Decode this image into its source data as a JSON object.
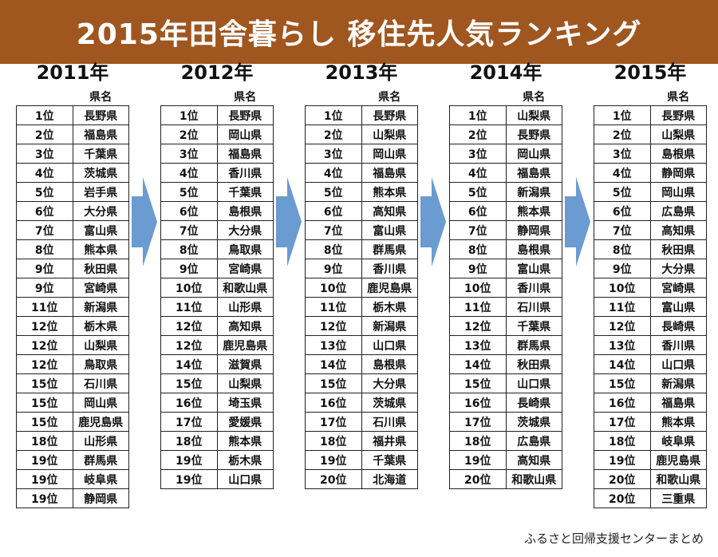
{
  "title": "2015年田舎暮らし 移住先人気ランキング",
  "header_label": "県名",
  "footer": "ふるさと回帰支援センターまとめ",
  "colors": {
    "title_bg": "#a0561f",
    "arrow": "#6a9bd1"
  },
  "years": [
    {
      "year": "2011年",
      "rows": [
        {
          "rank": "1位",
          "pref": "長野県"
        },
        {
          "rank": "2位",
          "pref": "福島県"
        },
        {
          "rank": "3位",
          "pref": "千葉県"
        },
        {
          "rank": "4位",
          "pref": "茨城県"
        },
        {
          "rank": "5位",
          "pref": "岩手県"
        },
        {
          "rank": "6位",
          "pref": "大分県"
        },
        {
          "rank": "7位",
          "pref": "富山県"
        },
        {
          "rank": "8位",
          "pref": "熊本県"
        },
        {
          "rank": "9位",
          "pref": "秋田県"
        },
        {
          "rank": "9位",
          "pref": "宮崎県"
        },
        {
          "rank": "11位",
          "pref": "新潟県"
        },
        {
          "rank": "12位",
          "pref": "栃木県"
        },
        {
          "rank": "12位",
          "pref": "山梨県"
        },
        {
          "rank": "12位",
          "pref": "鳥取県"
        },
        {
          "rank": "15位",
          "pref": "石川県"
        },
        {
          "rank": "15位",
          "pref": "岡山県"
        },
        {
          "rank": "15位",
          "pref": "鹿児島県"
        },
        {
          "rank": "18位",
          "pref": "山形県"
        },
        {
          "rank": "19位",
          "pref": "群馬県"
        },
        {
          "rank": "19位",
          "pref": "岐阜県"
        },
        {
          "rank": "19位",
          "pref": "静岡県"
        }
      ]
    },
    {
      "year": "2012年",
      "rows": [
        {
          "rank": "1位",
          "pref": "長野県"
        },
        {
          "rank": "2位",
          "pref": "岡山県"
        },
        {
          "rank": "3位",
          "pref": "福島県"
        },
        {
          "rank": "4位",
          "pref": "香川県"
        },
        {
          "rank": "5位",
          "pref": "千葉県"
        },
        {
          "rank": "6位",
          "pref": "島根県"
        },
        {
          "rank": "7位",
          "pref": "大分県"
        },
        {
          "rank": "8位",
          "pref": "鳥取県"
        },
        {
          "rank": "9位",
          "pref": "宮崎県"
        },
        {
          "rank": "10位",
          "pref": "和歌山県"
        },
        {
          "rank": "11位",
          "pref": "山形県"
        },
        {
          "rank": "12位",
          "pref": "高知県"
        },
        {
          "rank": "12位",
          "pref": "鹿児島県"
        },
        {
          "rank": "14位",
          "pref": "滋賀県"
        },
        {
          "rank": "15位",
          "pref": "山梨県"
        },
        {
          "rank": "16位",
          "pref": "埼玉県"
        },
        {
          "rank": "17位",
          "pref": "愛媛県"
        },
        {
          "rank": "18位",
          "pref": "熊本県"
        },
        {
          "rank": "19位",
          "pref": "栃木県"
        },
        {
          "rank": "19位",
          "pref": "山口県"
        }
      ]
    },
    {
      "year": "2013年",
      "rows": [
        {
          "rank": "1位",
          "pref": "長野県"
        },
        {
          "rank": "2位",
          "pref": "山梨県"
        },
        {
          "rank": "3位",
          "pref": "岡山県"
        },
        {
          "rank": "4位",
          "pref": "福島県"
        },
        {
          "rank": "5位",
          "pref": "熊本県"
        },
        {
          "rank": "6位",
          "pref": "高知県"
        },
        {
          "rank": "7位",
          "pref": "富山県"
        },
        {
          "rank": "8位",
          "pref": "群馬県"
        },
        {
          "rank": "9位",
          "pref": "香川県"
        },
        {
          "rank": "10位",
          "pref": "鹿児島県"
        },
        {
          "rank": "11位",
          "pref": "栃木県"
        },
        {
          "rank": "12位",
          "pref": "新潟県"
        },
        {
          "rank": "13位",
          "pref": "山口県"
        },
        {
          "rank": "14位",
          "pref": "島根県"
        },
        {
          "rank": "15位",
          "pref": "大分県"
        },
        {
          "rank": "16位",
          "pref": "茨城県"
        },
        {
          "rank": "17位",
          "pref": "石川県"
        },
        {
          "rank": "18位",
          "pref": "福井県"
        },
        {
          "rank": "19位",
          "pref": "千葉県"
        },
        {
          "rank": "20位",
          "pref": "北海道"
        }
      ]
    },
    {
      "year": "2014年",
      "rows": [
        {
          "rank": "1位",
          "pref": "山梨県"
        },
        {
          "rank": "2位",
          "pref": "長野県"
        },
        {
          "rank": "3位",
          "pref": "岡山県"
        },
        {
          "rank": "4位",
          "pref": "福島県"
        },
        {
          "rank": "5位",
          "pref": "新潟県"
        },
        {
          "rank": "6位",
          "pref": "熊本県"
        },
        {
          "rank": "7位",
          "pref": "静岡県"
        },
        {
          "rank": "8位",
          "pref": "島根県"
        },
        {
          "rank": "9位",
          "pref": "富山県"
        },
        {
          "rank": "10位",
          "pref": "香川県"
        },
        {
          "rank": "11位",
          "pref": "石川県"
        },
        {
          "rank": "12位",
          "pref": "千葉県"
        },
        {
          "rank": "13位",
          "pref": "群馬県"
        },
        {
          "rank": "14位",
          "pref": "秋田県"
        },
        {
          "rank": "15位",
          "pref": "山口県"
        },
        {
          "rank": "16位",
          "pref": "長崎県"
        },
        {
          "rank": "17位",
          "pref": "茨城県"
        },
        {
          "rank": "18位",
          "pref": "広島県"
        },
        {
          "rank": "19位",
          "pref": "高知県"
        },
        {
          "rank": "20位",
          "pref": "和歌山県"
        }
      ]
    },
    {
      "year": "2015年",
      "rows": [
        {
          "rank": "1位",
          "pref": "長野県"
        },
        {
          "rank": "2位",
          "pref": "山梨県"
        },
        {
          "rank": "3位",
          "pref": "島根県"
        },
        {
          "rank": "4位",
          "pref": "静岡県"
        },
        {
          "rank": "5位",
          "pref": "岡山県"
        },
        {
          "rank": "6位",
          "pref": "広島県"
        },
        {
          "rank": "7位",
          "pref": "高知県"
        },
        {
          "rank": "8位",
          "pref": "秋田県"
        },
        {
          "rank": "9位",
          "pref": "大分県"
        },
        {
          "rank": "10位",
          "pref": "宮崎県"
        },
        {
          "rank": "11位",
          "pref": "富山県"
        },
        {
          "rank": "12位",
          "pref": "長崎県"
        },
        {
          "rank": "13位",
          "pref": "香川県"
        },
        {
          "rank": "14位",
          "pref": "山口県"
        },
        {
          "rank": "15位",
          "pref": "新潟県"
        },
        {
          "rank": "16位",
          "pref": "福島県"
        },
        {
          "rank": "17位",
          "pref": "熊本県"
        },
        {
          "rank": "18位",
          "pref": "岐阜県"
        },
        {
          "rank": "19位",
          "pref": "鹿児島県"
        },
        {
          "rank": "20位",
          "pref": "和歌山県"
        },
        {
          "rank": "20位",
          "pref": "三重県"
        }
      ]
    }
  ]
}
